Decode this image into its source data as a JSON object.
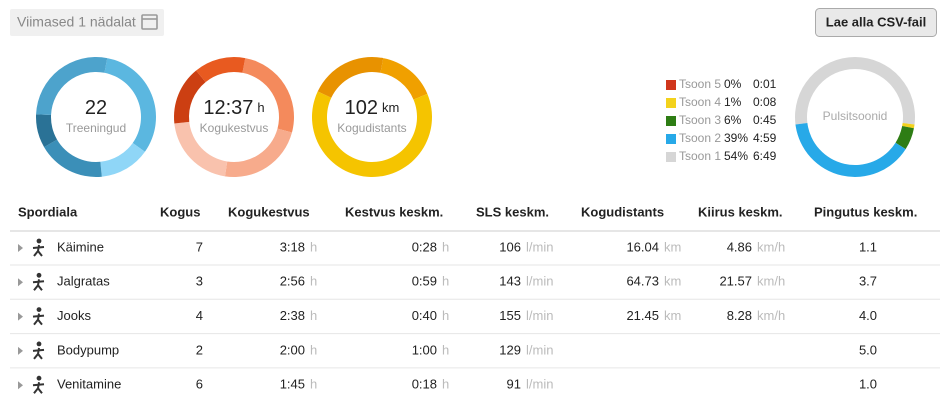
{
  "header": {
    "period": "Viimased 1 nädalat",
    "button": "Lae alla CSV-fail"
  },
  "summary": [
    {
      "value": "22",
      "label": "Treeningud"
    },
    {
      "value": "12:37",
      "unit": "h",
      "label": "Kogukestvus"
    },
    {
      "value": "102",
      "unit": "km",
      "label": "Kogudistants"
    }
  ],
  "zones": {
    "label": "Pulsitsoonid",
    "items": [
      {
        "name": "Tsoon 5",
        "percent": "0%",
        "time": "0:01",
        "color": "#d0361c"
      },
      {
        "name": "Tsoon 4",
        "percent": "1%",
        "time": "0:08",
        "color": "#f3d21c"
      },
      {
        "name": "Tsoon 3",
        "percent": "6%",
        "time": "0:45",
        "color": "#2e7d14"
      },
      {
        "name": "Tsoon 2",
        "percent": "39%",
        "time": "4:59",
        "color": "#27a9e8"
      },
      {
        "name": "Tsoon 1",
        "percent": "54%",
        "time": "6:49",
        "color": "#d6d6d6"
      }
    ]
  },
  "table": {
    "columns": [
      {
        "label": "Spordiala"
      },
      {
        "label": "Kogus"
      },
      {
        "label": "Kogukestvus",
        "unit": "h"
      },
      {
        "label": "Kestvus keskm.",
        "unit": "h"
      },
      {
        "label": "SLS keskm.",
        "unit": "l/min"
      },
      {
        "label": "Kogudistants",
        "unit": "km"
      },
      {
        "label": "Kiirus keskm.",
        "unit": "km/h"
      },
      {
        "label": "Pingutus keskm."
      }
    ],
    "rows": [
      [
        "Käimine",
        "7",
        "3:18",
        "0:28",
        "106",
        "16.04",
        "4.86",
        "1.1"
      ],
      [
        "Jalgratas",
        "3",
        "2:56",
        "0:59",
        "143",
        "64.73",
        "21.57",
        "3.7"
      ],
      [
        "Jooks",
        "4",
        "2:38",
        "0:40",
        "155",
        "21.45",
        "8.28",
        "4.0"
      ],
      [
        "Bodypump",
        "2",
        "2:00",
        "1:00",
        "129",
        null,
        null,
        "5.0"
      ],
      [
        "Venitamine",
        "6",
        "1:45",
        "0:18",
        "91",
        null,
        null,
        "1.0"
      ]
    ]
  }
}
